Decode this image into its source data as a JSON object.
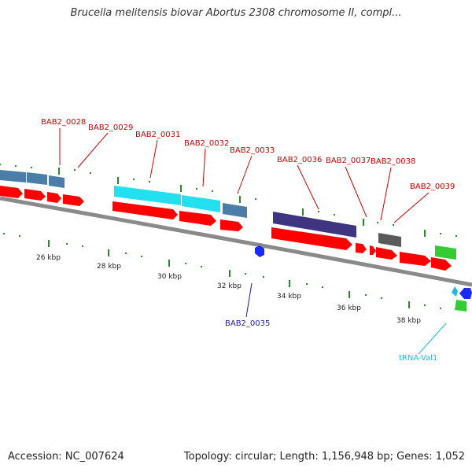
{
  "title": "Brucella melitensis biovar Abortus 2308 chromosome II, compl...",
  "footer": {
    "accession_label": "Accession: NC_007624",
    "summary_label": "Topology: circular; Length: 1,156,948 bp; Genes: 1,052"
  },
  "colors": {
    "backbone": "#8a8a8a",
    "tick": "#2a8a2a",
    "gene_label": "#cc0000",
    "pseudo_label": "#1a1aaa",
    "trna_label": "#22bbdd",
    "cds": "#ff0000",
    "gene_blue": "#4a7ea8",
    "gene_cyan": "#22e0f0",
    "gene_purple": "#3e3480",
    "gene_gray": "#5a5a5a",
    "gene_green": "#33cc33"
  },
  "ruler_labels": [
    "26 kbp",
    "28 kbp",
    "30 kbp",
    "32 kbp",
    "34 kbp",
    "36 kbp",
    "38 kbp"
  ],
  "gene_labels": [
    "BAB2_0028",
    "BAB2_0029",
    "BAB2_0031",
    "BAB2_0032",
    "BAB2_0033",
    "BAB2_0036",
    "BAB2_0037",
    "BAB2_0038",
    "BAB2_0039"
  ],
  "other_labels": {
    "pseudo": "BAB2_0035",
    "trna": "tRNA-Val1"
  }
}
